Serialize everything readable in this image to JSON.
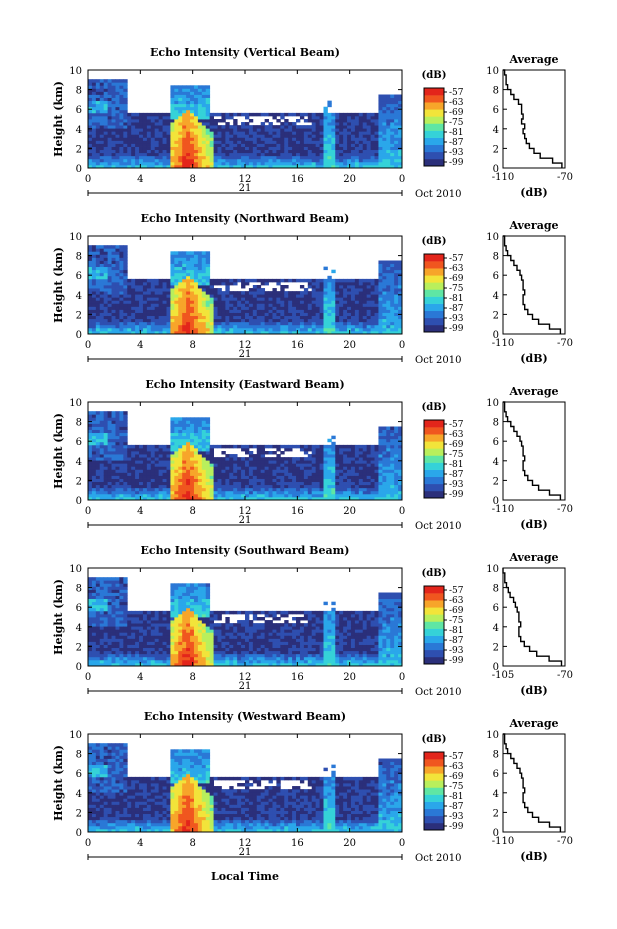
{
  "colors": {
    "scale": [
      "#2b2f7a",
      "#2e4fb0",
      "#2a78d6",
      "#2aa7ea",
      "#35d2d8",
      "#5fe6a4",
      "#b9ef5c",
      "#f2e43a",
      "#f7a52a",
      "#f0561f",
      "#e3251b"
    ],
    "background": "#ffffff",
    "axis": "#000000"
  },
  "common": {
    "ylabel": "Height (km)",
    "height_ticks": [
      "0",
      "2",
      "4",
      "6",
      "8",
      "10"
    ],
    "time_ticks": [
      "0",
      "4",
      "8",
      "12",
      "16",
      "20",
      "0"
    ],
    "day_label": "21",
    "date_label": "Oct 2010",
    "unit_label": "(dB)",
    "colorbar_ticks": [
      "-57",
      "-63",
      "-69",
      "-75",
      "-81",
      "-87",
      "-93",
      "-99"
    ],
    "average_title": "Average",
    "avg_xlabel": "(dB)",
    "avg_yticks": [
      "0",
      "2",
      "4",
      "6",
      "8",
      "10"
    ],
    "xlabel_bottom": "Local Time"
  },
  "chart_data": [
    {
      "type": "heatmap",
      "title": "Echo Intensity (Vertical Beam)",
      "xlabel": "Local Time (hours)",
      "ylabel": "Height (km)",
      "xlim": [
        0,
        24
      ],
      "ylim": [
        0,
        10
      ],
      "zlim": [
        -99,
        -57
      ],
      "avg_profile": {
        "xlabel": "(dB)",
        "xticks": [
          "-110",
          "-70"
        ],
        "xlim": [
          -110,
          -70
        ],
        "height": [
          0,
          0.5,
          1,
          1.5,
          2,
          2.5,
          3,
          3.5,
          4,
          4.5,
          5,
          5.5,
          6,
          6.5,
          7,
          7.5,
          8,
          8.5,
          9,
          9.5,
          10
        ],
        "dB": [
          -72,
          -78,
          -86,
          -90,
          -93,
          -95,
          -96,
          -97,
          -96,
          -98,
          -97,
          -98,
          -98,
          -100,
          -103,
          -105,
          -107,
          -108,
          -108,
          -109,
          -110
        ]
      }
    },
    {
      "type": "heatmap",
      "title": "Echo Intensity (Northward Beam)",
      "xlabel": "Local Time (hours)",
      "ylabel": "Height (km)",
      "xlim": [
        0,
        24
      ],
      "ylim": [
        0,
        10
      ],
      "zlim": [
        -99,
        -57
      ],
      "avg_profile": {
        "xlabel": "(dB)",
        "xticks": [
          "-110",
          "-70"
        ],
        "xlim": [
          -110,
          -70
        ],
        "height": [
          0,
          0.5,
          1,
          1.5,
          2,
          2.5,
          3,
          3.5,
          4,
          4.5,
          5,
          5.5,
          6,
          6.5,
          7,
          7.5,
          8,
          8.5,
          9,
          9.5,
          10
        ],
        "dB": [
          -73,
          -80,
          -87,
          -91,
          -94,
          -96,
          -97,
          -97,
          -96,
          -97,
          -97,
          -98,
          -99,
          -101,
          -103,
          -105,
          -107,
          -108,
          -109,
          -109,
          -110
        ]
      }
    },
    {
      "type": "heatmap",
      "title": "Echo Intensity (Eastward Beam)",
      "xlabel": "Local Time (hours)",
      "ylabel": "Height (km)",
      "xlim": [
        0,
        24
      ],
      "ylim": [
        0,
        10
      ],
      "zlim": [
        -99,
        -57
      ],
      "avg_profile": {
        "xlabel": "(dB)",
        "xticks": [
          "-110",
          "-70"
        ],
        "xlim": [
          -110,
          -70
        ],
        "height": [
          0,
          0.5,
          1,
          1.5,
          2,
          2.5,
          3,
          3.5,
          4,
          4.5,
          5,
          5.5,
          6,
          6.5,
          7,
          7.5,
          8,
          8.5,
          9,
          9.5,
          10
        ],
        "dB": [
          -73,
          -80,
          -87,
          -91,
          -94,
          -96,
          -97,
          -97,
          -96,
          -97,
          -97,
          -98,
          -99,
          -101,
          -103,
          -105,
          -107,
          -108,
          -109,
          -109,
          -110
        ]
      }
    },
    {
      "type": "heatmap",
      "title": "Echo Intensity (Southward Beam)",
      "xlabel": "Local Time (hours)",
      "ylabel": "Height (km)",
      "xlim": [
        0,
        24
      ],
      "ylim": [
        0,
        10
      ],
      "zlim": [
        -99,
        -57
      ],
      "avg_profile": {
        "xlabel": "(dB)",
        "xticks": [
          "-105",
          "-70"
        ],
        "xlim": [
          -105,
          -70
        ],
        "height": [
          0,
          0.5,
          1,
          1.5,
          2,
          2.5,
          3,
          3.5,
          4,
          4.5,
          5,
          5.5,
          6,
          6.5,
          7,
          7.5,
          8,
          8.5,
          9,
          9.5,
          10
        ],
        "dB": [
          -72,
          -79,
          -86,
          -90,
          -93,
          -95,
          -96,
          -96,
          -95,
          -96,
          -96,
          -97,
          -98,
          -99,
          -101,
          -102,
          -103,
          -104,
          -104,
          -105,
          -105
        ]
      }
    },
    {
      "type": "heatmap",
      "title": "Echo Intensity (Westward Beam)",
      "xlabel": "Local Time (hours)",
      "ylabel": "Height (km)",
      "xlim": [
        0,
        24
      ],
      "ylim": [
        0,
        10
      ],
      "zlim": [
        -99,
        -57
      ],
      "avg_profile": {
        "xlabel": "(dB)",
        "xticks": [
          "-110",
          "-70"
        ],
        "xlim": [
          -110,
          -70
        ],
        "height": [
          0,
          0.5,
          1,
          1.5,
          2,
          2.5,
          3,
          3.5,
          4,
          4.5,
          5,
          5.5,
          6,
          6.5,
          7,
          7.5,
          8,
          8.5,
          9,
          9.5,
          10
        ],
        "dB": [
          -73,
          -80,
          -87,
          -91,
          -94,
          -96,
          -97,
          -97,
          -96,
          -97,
          -97,
          -98,
          -99,
          -101,
          -103,
          -105,
          -107,
          -108,
          -109,
          -109,
          -110
        ]
      }
    }
  ]
}
